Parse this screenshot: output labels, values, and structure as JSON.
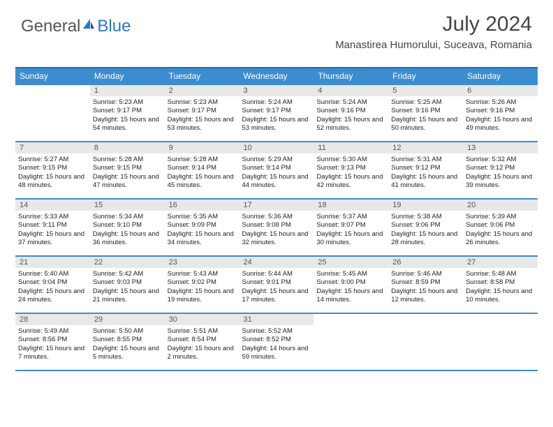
{
  "brand": {
    "part1": "General",
    "part2": "Blue"
  },
  "colors": {
    "header_bg": "#3c8dcf",
    "header_border": "#2a6aa8",
    "week_border": "#3c8dcf",
    "daynum_bg": "#e8e8e8",
    "text": "#222222",
    "title_text": "#444444",
    "brand_gray": "#555555",
    "brand_blue": "#2a78c4",
    "background": "#ffffff"
  },
  "title": "July 2024",
  "location": "Manastirea Humorului, Suceava, Romania",
  "day_headers": [
    "Sunday",
    "Monday",
    "Tuesday",
    "Wednesday",
    "Thursday",
    "Friday",
    "Saturday"
  ],
  "weeks": [
    [
      {
        "num": "",
        "sunrise": "",
        "sunset": "",
        "daylight": ""
      },
      {
        "num": "1",
        "sunrise": "Sunrise: 5:23 AM",
        "sunset": "Sunset: 9:17 PM",
        "daylight": "Daylight: 15 hours and 54 minutes."
      },
      {
        "num": "2",
        "sunrise": "Sunrise: 5:23 AM",
        "sunset": "Sunset: 9:17 PM",
        "daylight": "Daylight: 15 hours and 53 minutes."
      },
      {
        "num": "3",
        "sunrise": "Sunrise: 5:24 AM",
        "sunset": "Sunset: 9:17 PM",
        "daylight": "Daylight: 15 hours and 53 minutes."
      },
      {
        "num": "4",
        "sunrise": "Sunrise: 5:24 AM",
        "sunset": "Sunset: 9:16 PM",
        "daylight": "Daylight: 15 hours and 52 minutes."
      },
      {
        "num": "5",
        "sunrise": "Sunrise: 5:25 AM",
        "sunset": "Sunset: 9:16 PM",
        "daylight": "Daylight: 15 hours and 50 minutes."
      },
      {
        "num": "6",
        "sunrise": "Sunrise: 5:26 AM",
        "sunset": "Sunset: 9:16 PM",
        "daylight": "Daylight: 15 hours and 49 minutes."
      }
    ],
    [
      {
        "num": "7",
        "sunrise": "Sunrise: 5:27 AM",
        "sunset": "Sunset: 9:15 PM",
        "daylight": "Daylight: 15 hours and 48 minutes."
      },
      {
        "num": "8",
        "sunrise": "Sunrise: 5:28 AM",
        "sunset": "Sunset: 9:15 PM",
        "daylight": "Daylight: 15 hours and 47 minutes."
      },
      {
        "num": "9",
        "sunrise": "Sunrise: 5:28 AM",
        "sunset": "Sunset: 9:14 PM",
        "daylight": "Daylight: 15 hours and 45 minutes."
      },
      {
        "num": "10",
        "sunrise": "Sunrise: 5:29 AM",
        "sunset": "Sunset: 9:14 PM",
        "daylight": "Daylight: 15 hours and 44 minutes."
      },
      {
        "num": "11",
        "sunrise": "Sunrise: 5:30 AM",
        "sunset": "Sunset: 9:13 PM",
        "daylight": "Daylight: 15 hours and 42 minutes."
      },
      {
        "num": "12",
        "sunrise": "Sunrise: 5:31 AM",
        "sunset": "Sunset: 9:12 PM",
        "daylight": "Daylight: 15 hours and 41 minutes."
      },
      {
        "num": "13",
        "sunrise": "Sunrise: 5:32 AM",
        "sunset": "Sunset: 9:12 PM",
        "daylight": "Daylight: 15 hours and 39 minutes."
      }
    ],
    [
      {
        "num": "14",
        "sunrise": "Sunrise: 5:33 AM",
        "sunset": "Sunset: 9:11 PM",
        "daylight": "Daylight: 15 hours and 37 minutes."
      },
      {
        "num": "15",
        "sunrise": "Sunrise: 5:34 AM",
        "sunset": "Sunset: 9:10 PM",
        "daylight": "Daylight: 15 hours and 36 minutes."
      },
      {
        "num": "16",
        "sunrise": "Sunrise: 5:35 AM",
        "sunset": "Sunset: 9:09 PM",
        "daylight": "Daylight: 15 hours and 34 minutes."
      },
      {
        "num": "17",
        "sunrise": "Sunrise: 5:36 AM",
        "sunset": "Sunset: 9:08 PM",
        "daylight": "Daylight: 15 hours and 32 minutes."
      },
      {
        "num": "18",
        "sunrise": "Sunrise: 5:37 AM",
        "sunset": "Sunset: 9:07 PM",
        "daylight": "Daylight: 15 hours and 30 minutes."
      },
      {
        "num": "19",
        "sunrise": "Sunrise: 5:38 AM",
        "sunset": "Sunset: 9:06 PM",
        "daylight": "Daylight: 15 hours and 28 minutes."
      },
      {
        "num": "20",
        "sunrise": "Sunrise: 5:39 AM",
        "sunset": "Sunset: 9:06 PM",
        "daylight": "Daylight: 15 hours and 26 minutes."
      }
    ],
    [
      {
        "num": "21",
        "sunrise": "Sunrise: 5:40 AM",
        "sunset": "Sunset: 9:04 PM",
        "daylight": "Daylight: 15 hours and 24 minutes."
      },
      {
        "num": "22",
        "sunrise": "Sunrise: 5:42 AM",
        "sunset": "Sunset: 9:03 PM",
        "daylight": "Daylight: 15 hours and 21 minutes."
      },
      {
        "num": "23",
        "sunrise": "Sunrise: 5:43 AM",
        "sunset": "Sunset: 9:02 PM",
        "daylight": "Daylight: 15 hours and 19 minutes."
      },
      {
        "num": "24",
        "sunrise": "Sunrise: 5:44 AM",
        "sunset": "Sunset: 9:01 PM",
        "daylight": "Daylight: 15 hours and 17 minutes."
      },
      {
        "num": "25",
        "sunrise": "Sunrise: 5:45 AM",
        "sunset": "Sunset: 9:00 PM",
        "daylight": "Daylight: 15 hours and 14 minutes."
      },
      {
        "num": "26",
        "sunrise": "Sunrise: 5:46 AM",
        "sunset": "Sunset: 8:59 PM",
        "daylight": "Daylight: 15 hours and 12 minutes."
      },
      {
        "num": "27",
        "sunrise": "Sunrise: 5:48 AM",
        "sunset": "Sunset: 8:58 PM",
        "daylight": "Daylight: 15 hours and 10 minutes."
      }
    ],
    [
      {
        "num": "28",
        "sunrise": "Sunrise: 5:49 AM",
        "sunset": "Sunset: 8:56 PM",
        "daylight": "Daylight: 15 hours and 7 minutes."
      },
      {
        "num": "29",
        "sunrise": "Sunrise: 5:50 AM",
        "sunset": "Sunset: 8:55 PM",
        "daylight": "Daylight: 15 hours and 5 minutes."
      },
      {
        "num": "30",
        "sunrise": "Sunrise: 5:51 AM",
        "sunset": "Sunset: 8:54 PM",
        "daylight": "Daylight: 15 hours and 2 minutes."
      },
      {
        "num": "31",
        "sunrise": "Sunrise: 5:52 AM",
        "sunset": "Sunset: 8:52 PM",
        "daylight": "Daylight: 14 hours and 59 minutes."
      },
      {
        "num": "",
        "sunrise": "",
        "sunset": "",
        "daylight": ""
      },
      {
        "num": "",
        "sunrise": "",
        "sunset": "",
        "daylight": ""
      },
      {
        "num": "",
        "sunrise": "",
        "sunset": "",
        "daylight": ""
      }
    ]
  ]
}
